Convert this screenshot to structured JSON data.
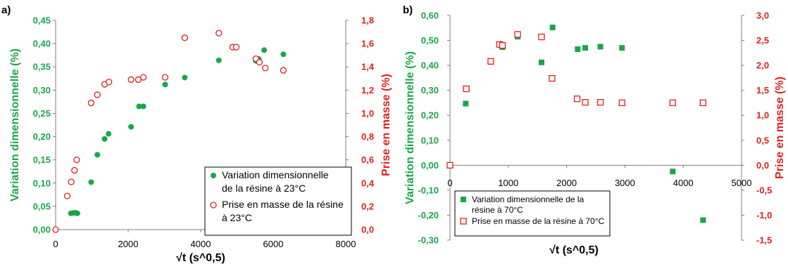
{
  "chart_data": [
    {
      "panel_label": "a)",
      "type": "scatter",
      "xlabel": "√t (s^0,5)",
      "ylabel_left": "Variation dimensionnelle (%)",
      "ylabel_right": "Prise en masse (%)",
      "xlim": [
        0,
        8000
      ],
      "xticks": [
        "0",
        "2000",
        "4000",
        "6000",
        "8000"
      ],
      "ylim_left": [
        0,
        0.45
      ],
      "yticks_left": [
        "0,00",
        "0,05",
        "0,10",
        "0,15",
        "0,20",
        "0,25",
        "0,30",
        "0,35",
        "0,40",
        "0,45"
      ],
      "ylim_right": [
        0,
        1.8
      ],
      "yticks_right": [
        "0,0",
        "0,2",
        "0,4",
        "0,6",
        "0,8",
        "1,0",
        "1,2",
        "1,4",
        "1,6",
        "1,8"
      ],
      "legend_placement": "lower-right",
      "colors": {
        "left_axis": "#1aa64b",
        "right_axis": "#e02020"
      },
      "series": [
        {
          "name": "Variation dimensionnelle de la résine à 23°C",
          "axis": "left",
          "marker": "filled-circle",
          "color": "#1aa64b",
          "points": [
            [
              0,
              0.0
            ],
            [
              420,
              0.035
            ],
            [
              500,
              0.036
            ],
            [
              560,
              0.036
            ],
            [
              600,
              0.035
            ],
            [
              980,
              0.102
            ],
            [
              1150,
              0.161
            ],
            [
              1350,
              0.195
            ],
            [
              1460,
              0.206
            ],
            [
              2080,
              0.221
            ],
            [
              2300,
              0.265
            ],
            [
              2420,
              0.265
            ],
            [
              3020,
              0.312
            ],
            [
              3560,
              0.327
            ],
            [
              4500,
              0.364
            ],
            [
              4880,
              0.393
            ],
            [
              5520,
              0.363
            ],
            [
              5600,
              0.367
            ],
            [
              5750,
              0.386
            ],
            [
              6280,
              0.377
            ]
          ]
        },
        {
          "name": "Prise en masse de la résine à 23°C",
          "axis": "right",
          "marker": "open-circle",
          "color": "#e02020",
          "points": [
            [
              0,
              0.0
            ],
            [
              320,
              0.29
            ],
            [
              430,
              0.41
            ],
            [
              520,
              0.51
            ],
            [
              580,
              0.6
            ],
            [
              980,
              1.09
            ],
            [
              1150,
              1.16
            ],
            [
              1350,
              1.25
            ],
            [
              1470,
              1.27
            ],
            [
              2080,
              1.29
            ],
            [
              2280,
              1.29
            ],
            [
              2420,
              1.31
            ],
            [
              3020,
              1.31
            ],
            [
              3560,
              1.65
            ],
            [
              4500,
              1.69
            ],
            [
              4880,
              1.57
            ],
            [
              4980,
              1.57
            ],
            [
              5520,
              1.47
            ],
            [
              5620,
              1.44
            ],
            [
              5780,
              1.39
            ],
            [
              6280,
              1.37
            ]
          ]
        }
      ]
    },
    {
      "panel_label": "b)",
      "type": "scatter",
      "xlabel": "√t (s^0,5)",
      "ylabel_left": "Variation dimensionnelle (%)",
      "ylabel_right": "Prise en masse (%)",
      "xlim": [
        0,
        5000
      ],
      "xticks": [
        "0",
        "1000",
        "2000",
        "3000",
        "4000",
        "5000"
      ],
      "ylim_left": [
        -0.3,
        0.6
      ],
      "yticks_left": [
        "-0,30",
        "-0,20",
        "-0,10",
        "0,00",
        "0,10",
        "0,20",
        "0,30",
        "0,40",
        "0,50",
        "0,60"
      ],
      "ylim_right": [
        -1.5,
        3.0
      ],
      "yticks_right": [
        "-1,5",
        "-1,0",
        "-0,5",
        "0,0",
        "0,5",
        "1,0",
        "1,5",
        "2,0",
        "2,5",
        "3,0"
      ],
      "legend_placement": "lower-left",
      "colors": {
        "left_axis": "#1aa64b",
        "right_axis": "#e02020"
      },
      "series": [
        {
          "name": "Variation dimensionnelle de la résine à 70°C",
          "axis": "left",
          "marker": "filled-square",
          "color": "#1aa64b",
          "points": [
            [
              0,
              0.0
            ],
            [
              270,
              0.247
            ],
            [
              900,
              0.473
            ],
            [
              1160,
              0.515
            ],
            [
              1570,
              0.412
            ],
            [
              1760,
              0.552
            ],
            [
              2190,
              0.465
            ],
            [
              2320,
              0.47
            ],
            [
              2580,
              0.475
            ],
            [
              2950,
              0.47
            ],
            [
              3820,
              -0.025
            ],
            [
              4340,
              -0.22
            ]
          ]
        },
        {
          "name": "Prise en masse de la résine à 70°C",
          "axis": "right",
          "marker": "open-square",
          "color": "#e02020",
          "points": [
            [
              0,
              0.0
            ],
            [
              280,
              1.53
            ],
            [
              700,
              2.08
            ],
            [
              850,
              2.42
            ],
            [
              900,
              2.4
            ],
            [
              1160,
              2.62
            ],
            [
              1570,
              2.57
            ],
            [
              1750,
              1.74
            ],
            [
              2180,
              1.33
            ],
            [
              2320,
              1.26
            ],
            [
              2580,
              1.26
            ],
            [
              2950,
              1.25
            ],
            [
              3820,
              1.25
            ],
            [
              4340,
              1.25
            ]
          ]
        }
      ]
    }
  ]
}
